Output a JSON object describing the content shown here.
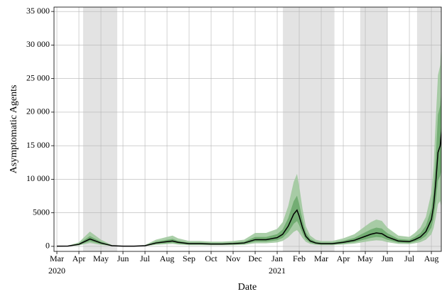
{
  "chart_data": {
    "type": "band-line",
    "xlabel": "Date",
    "ylabel": "Asymptomatic Agents",
    "xlim": [
      -0.13,
      17.45
    ],
    "ylim": [
      -750,
      35650
    ],
    "xticks": [
      {
        "value": 0,
        "label": "Mar"
      },
      {
        "value": 1,
        "label": "Apr"
      },
      {
        "value": 2,
        "label": "May"
      },
      {
        "value": 3,
        "label": "Jun"
      },
      {
        "value": 4,
        "label": "Jul"
      },
      {
        "value": 5,
        "label": "Aug"
      },
      {
        "value": 6,
        "label": "Sep"
      },
      {
        "value": 7,
        "label": "Oct"
      },
      {
        "value": 8,
        "label": "Nov"
      },
      {
        "value": 9,
        "label": "Dec"
      },
      {
        "value": 10,
        "label": "Jan"
      },
      {
        "value": 11,
        "label": "Feb"
      },
      {
        "value": 12,
        "label": "Mar"
      },
      {
        "value": 13,
        "label": "Apr"
      },
      {
        "value": 14,
        "label": "May"
      },
      {
        "value": 15,
        "label": "Jun"
      },
      {
        "value": 16,
        "label": "Jul"
      },
      {
        "value": 17,
        "label": "Aug"
      }
    ],
    "year_labels": [
      {
        "value": 0,
        "label": "2020"
      },
      {
        "value": 10,
        "label": "2021"
      }
    ],
    "yticks": [
      0,
      5000,
      {
        "value": 10000,
        "label": "10 000"
      },
      {
        "value": 15000,
        "label": "15 000"
      },
      {
        "value": 20000,
        "label": "20 000"
      },
      {
        "value": 25000,
        "label": "25 000"
      },
      {
        "value": 30000,
        "label": "30 000"
      },
      {
        "value": 35000,
        "label": "35 000"
      }
    ],
    "grid": true,
    "shaded_regions": [
      [
        1.19,
        2.74
      ],
      [
        10.26,
        12.6
      ],
      [
        13.77,
        15.0
      ],
      [
        16.35,
        17.45
      ]
    ],
    "shade_color": "#e3e3e3",
    "x": [
      0,
      0.5,
      1,
      1.25,
      1.5,
      1.75,
      2,
      2.25,
      2.5,
      3,
      3.5,
      4,
      4.5,
      5,
      5.25,
      5.5,
      6,
      6.5,
      7,
      7.5,
      8,
      8.5,
      9,
      9.5,
      10,
      10.25,
      10.5,
      10.75,
      10.9,
      11,
      11.15,
      11.3,
      11.5,
      11.75,
      12,
      12.5,
      13,
      13.5,
      14,
      14.25,
      14.5,
      14.75,
      15,
      15.5,
      16,
      16.25,
      16.5,
      16.75,
      17,
      17.1,
      17.2,
      17.3,
      17.4,
      17.5
    ],
    "bands": [
      {
        "color": "#9cc79a",
        "lower": [
          10,
          20,
          135,
          315,
          495,
          360,
          225,
          135,
          45,
          10,
          10,
          45,
          225,
          315,
          360,
          270,
          180,
          180,
          160,
          160,
          180,
          225,
          450,
          450,
          585,
          810,
          1350,
          2160,
          2430,
          2025,
          1260,
          675,
          360,
          225,
          180,
          180,
          270,
          405,
          675,
          810,
          900,
          855,
          630,
          360,
          315,
          450,
          630,
          990,
          1800,
          2700,
          4300,
          6300,
          6750,
          5000
        ],
        "upper": [
          60,
          100,
          600,
          1400,
          2200,
          1600,
          1000,
          600,
          200,
          60,
          60,
          200,
          1000,
          1400,
          1600,
          1200,
          800,
          800,
          700,
          700,
          800,
          1000,
          2000,
          2000,
          2600,
          3600,
          6000,
          9600,
          10800,
          9000,
          5600,
          3000,
          1600,
          1000,
          800,
          800,
          1200,
          1800,
          3000,
          3600,
          4000,
          3800,
          2800,
          1600,
          1400,
          2000,
          2800,
          4400,
          8000,
          12000,
          19000,
          25500,
          27000,
          33000
        ]
      },
      {
        "color": "#6aa86a",
        "lower": [
          20,
          35,
          210,
          490,
          770,
          560,
          350,
          210,
          70,
          20,
          20,
          70,
          350,
          490,
          560,
          420,
          280,
          280,
          245,
          245,
          280,
          350,
          700,
          700,
          910,
          1260,
          2100,
          3360,
          3780,
          3150,
          1960,
          1050,
          560,
          350,
          280,
          280,
          420,
          630,
          1050,
          1260,
          1400,
          1330,
          980,
          560,
          490,
          700,
          980,
          1540,
          2800,
          4200,
          6650,
          9800,
          10500,
          12000
        ],
        "upper": [
          40,
          70,
          420,
          980,
          1540,
          1120,
          700,
          420,
          140,
          40,
          40,
          140,
          700,
          980,
          1120,
          840,
          560,
          560,
          490,
          490,
          560,
          700,
          1400,
          1400,
          1820,
          2520,
          4200,
          6720,
          7560,
          6300,
          3920,
          2100,
          1120,
          700,
          560,
          560,
          840,
          1260,
          2100,
          2520,
          2800,
          2660,
          1960,
          1120,
          980,
          1400,
          1960,
          3080,
          5600,
          8400,
          13300,
          19600,
          21000,
          25000
        ]
      }
    ],
    "series": [
      {
        "color": "#000000",
        "values": [
          30,
          50,
          300,
          700,
          1100,
          800,
          500,
          300,
          100,
          30,
          30,
          100,
          500,
          700,
          800,
          600,
          400,
          400,
          350,
          350,
          400,
          500,
          1000,
          1000,
          1300,
          1800,
          3000,
          4800,
          5400,
          4500,
          2800,
          1500,
          800,
          500,
          400,
          400,
          600,
          900,
          1500,
          1800,
          2000,
          1900,
          1400,
          800,
          700,
          1000,
          1400,
          2200,
          4000,
          6000,
          9500,
          14000,
          15000,
          18700
        ]
      }
    ]
  }
}
